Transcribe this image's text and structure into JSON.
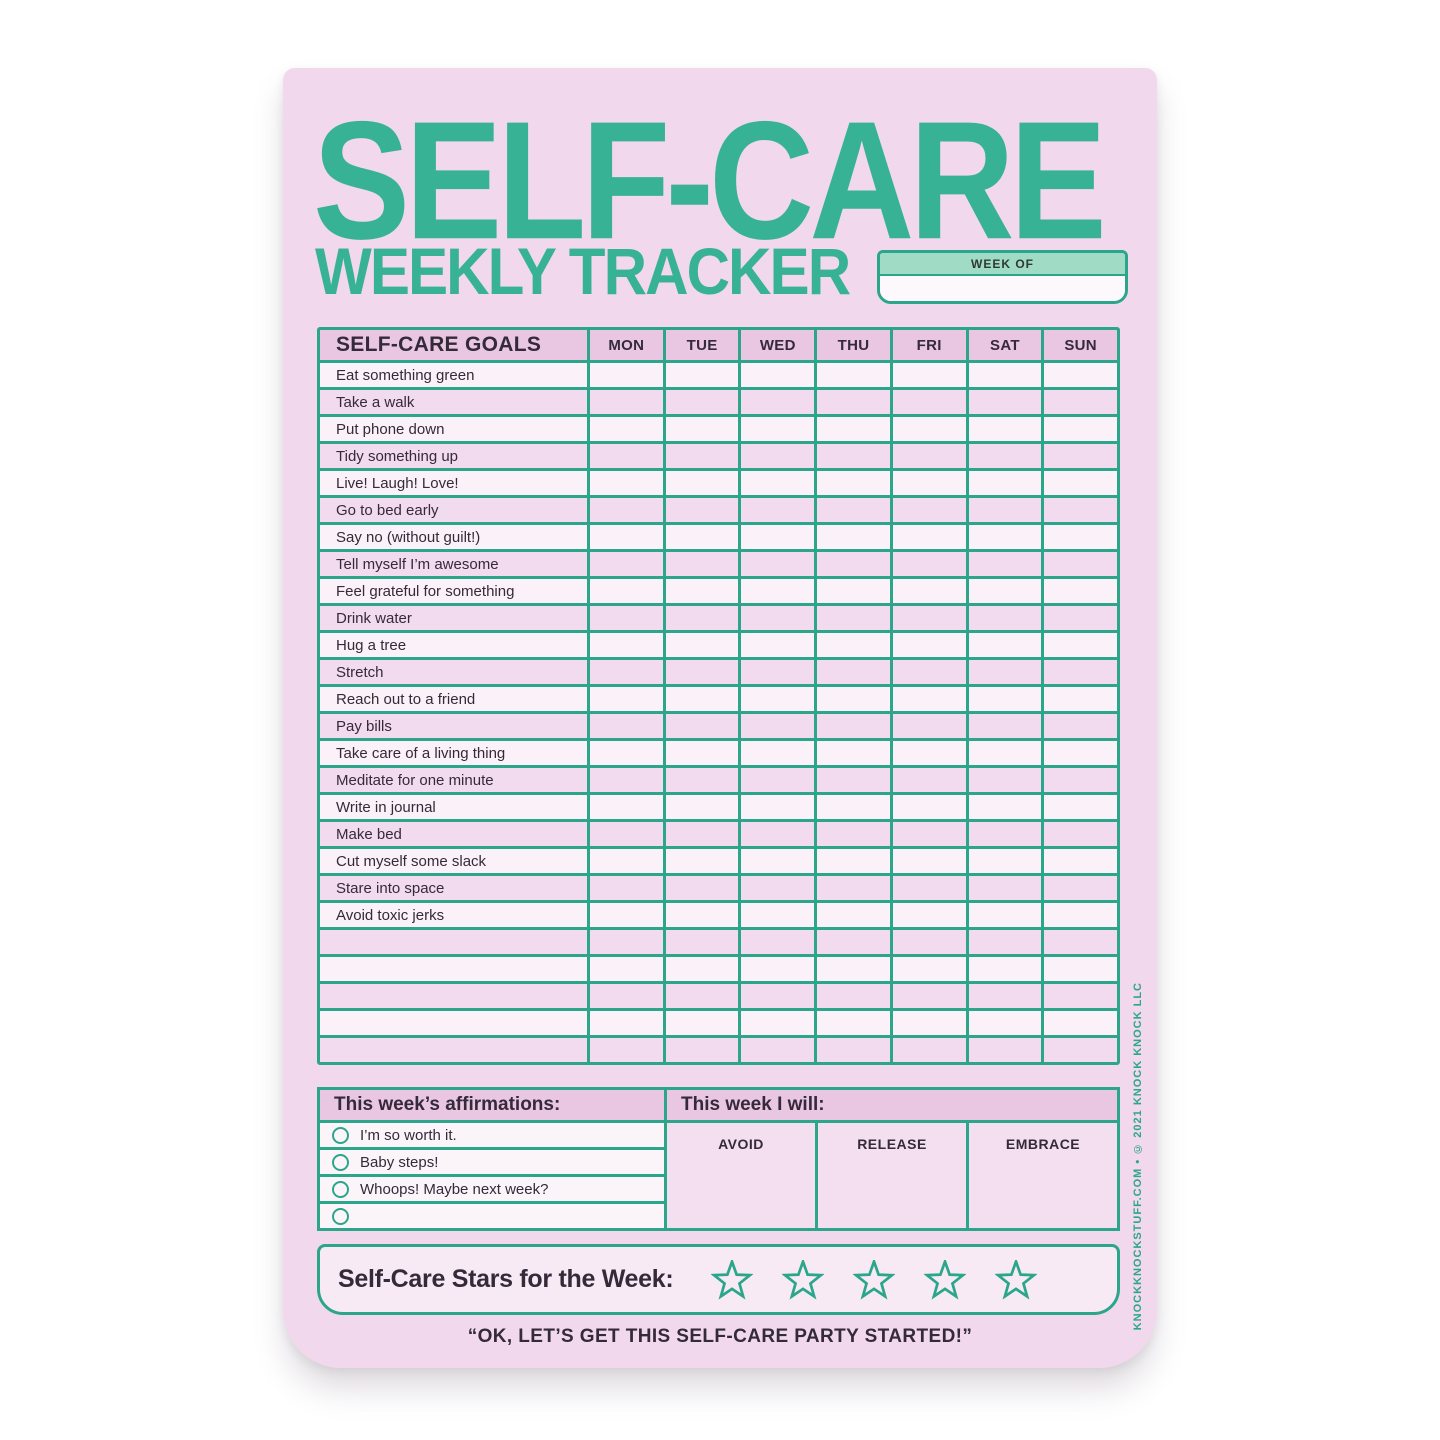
{
  "page": {
    "title_line1": "SELF-CARE",
    "title_line2": "WEEKLY TRACKER"
  },
  "week_of": {
    "label": "WEEK OF",
    "value": ""
  },
  "tracker_table": {
    "goals_header": "SELF-CARE GOALS",
    "day_headers": [
      "MON",
      "TUE",
      "WED",
      "THU",
      "FRI",
      "SAT",
      "SUN"
    ],
    "goals": [
      "Eat something green",
      "Take a walk",
      "Put phone down",
      "Tidy something up",
      "Live! Laugh! Love!",
      "Go to bed early",
      "Say no (without guilt!)",
      "Tell myself I’m awesome",
      "Feel grateful for something",
      "Drink water",
      "Hug a tree",
      "Stretch",
      "Reach out to a friend",
      "Pay bills",
      "Take care of a living thing",
      "Meditate for one minute",
      "Write in journal",
      "Make bed",
      "Cut myself some slack",
      "Stare into space",
      "Avoid toxic jerks"
    ],
    "empty_row_count": 5
  },
  "affirmations": {
    "header": "This week’s affirmations:",
    "items": [
      "I’m so worth it.",
      "Baby steps!",
      "Whoops! Maybe next week?",
      ""
    ]
  },
  "this_week_i_will": {
    "header": "This week I will:",
    "columns": [
      "AVOID",
      "RELEASE",
      "EMBRACE"
    ]
  },
  "stars": {
    "label": "Self-Care Stars for the Week:",
    "count": 5
  },
  "footer": {
    "quote": "“OK, LET’S GET THIS SELF-CARE PARTY STARTED!”"
  },
  "side_text": "KNOCKKNOCKSTUFF.COM • © 2021 KNOCK KNOCK LLC",
  "colors": {
    "teal": "#2ba68b",
    "title_teal": "#38b295",
    "pad_pink": "#f1d8ec",
    "header_mauve": "#e9c6e2",
    "row_light": "#faf2f8",
    "row_pink": "#f2dbee",
    "week_of_band": "#a0dbc6",
    "text_dark": "#342a3a"
  }
}
